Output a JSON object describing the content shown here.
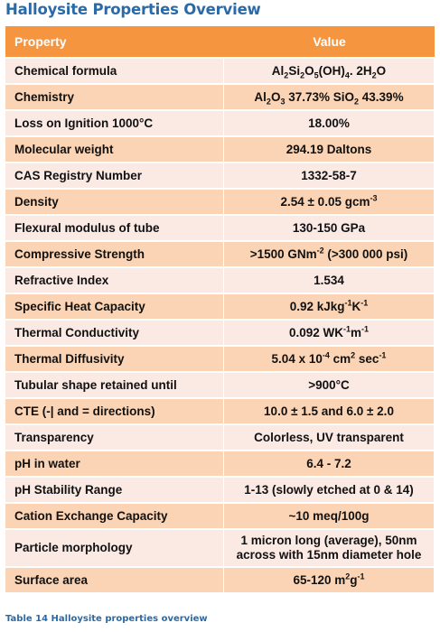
{
  "title": "Halloysite Properties Overview",
  "table": {
    "headers": {
      "property": "Property",
      "value": "Value"
    },
    "rows": [
      {
        "property": "Chemical formula",
        "value": [
          [
            "Al"
          ],
          [
            "2",
            "sub"
          ],
          [
            "Si"
          ],
          [
            "2",
            "sub"
          ],
          [
            "O"
          ],
          [
            "5",
            "sub"
          ],
          [
            "(OH)"
          ],
          [
            "4",
            "sub"
          ],
          [
            ". 2H"
          ],
          [
            "2",
            "sub"
          ],
          [
            "O"
          ]
        ]
      },
      {
        "property": "Chemistry",
        "value": [
          [
            "Al"
          ],
          [
            "2",
            "sub"
          ],
          [
            "O"
          ],
          [
            "3",
            "sub"
          ],
          [
            " 37.73% SiO"
          ],
          [
            "2",
            "sub"
          ],
          [
            " 43.39%"
          ]
        ]
      },
      {
        "property": "Loss on Ignition 1000°C",
        "value": [
          [
            "18.00%"
          ]
        ]
      },
      {
        "property": "Molecular weight",
        "value": [
          [
            "294.19 Daltons"
          ]
        ]
      },
      {
        "property": "CAS Registry Number",
        "value": [
          [
            "1332-58-7"
          ]
        ]
      },
      {
        "property": "Density",
        "value": [
          [
            "2.54 ± 0.05 gcm"
          ],
          [
            "-3",
            "sup"
          ]
        ]
      },
      {
        "property": "Flexural modulus of tube",
        "value": [
          [
            "130-150 GPa"
          ]
        ]
      },
      {
        "property": "Compressive Strength",
        "value": [
          [
            ">1500 GNm"
          ],
          [
            "-2",
            "sup"
          ],
          [
            " (>300 000 psi)"
          ]
        ]
      },
      {
        "property": "Refractive Index",
        "value": [
          [
            "1.534"
          ]
        ]
      },
      {
        "property": "Specific Heat Capacity",
        "value": [
          [
            "0.92 kJkg"
          ],
          [
            "-1",
            "sup"
          ],
          [
            "K"
          ],
          [
            "-1",
            "sup"
          ]
        ]
      },
      {
        "property": "Thermal Conductivity",
        "value": [
          [
            "0.092 WK"
          ],
          [
            "-1",
            "sup"
          ],
          [
            "m"
          ],
          [
            "-1",
            "sup"
          ]
        ]
      },
      {
        "property": "Thermal Diffusivity",
        "value": [
          [
            "5.04 x 10"
          ],
          [
            "-4",
            "sup"
          ],
          [
            " cm"
          ],
          [
            "2",
            "sup"
          ],
          [
            " sec"
          ],
          [
            "-1",
            "sup"
          ]
        ]
      },
      {
        "property": "Tubular shape retained until",
        "value": [
          [
            ">900°C"
          ]
        ]
      },
      {
        "property": "CTE (-| and = directions)",
        "value": [
          [
            "10.0 ± 1.5 and 6.0 ± 2.0"
          ]
        ]
      },
      {
        "property": "Transparency",
        "value": [
          [
            "Colorless, UV transparent"
          ]
        ]
      },
      {
        "property": "pH in water",
        "value": [
          [
            "6.4 - 7.2"
          ]
        ]
      },
      {
        "property": "pH Stability Range",
        "value": [
          [
            "1-13 (slowly etched at 0 & 14)"
          ]
        ]
      },
      {
        "property": "Cation Exchange Capacity",
        "value": [
          [
            "~10 meq/100g"
          ]
        ]
      },
      {
        "property": "Particle morphology",
        "value": [
          [
            "1 micron long (average), 50nm"
          ],
          [
            "\n"
          ],
          [
            "across with 15nm diameter hole"
          ]
        ]
      },
      {
        "property": "Surface area",
        "value": [
          [
            "65-120 m"
          ],
          [
            "2",
            "sup"
          ],
          [
            "g"
          ],
          [
            "-1",
            "sup"
          ]
        ]
      }
    ]
  },
  "caption": "Table 14 Halloysite properties overview",
  "colors": {
    "header": "#f5953f",
    "row_light": "#fbe9e4",
    "row_dark": "#fad4b4",
    "title": "#2a6aa8"
  }
}
